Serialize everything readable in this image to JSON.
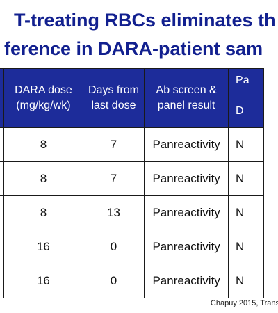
{
  "slide": {
    "title_line1": "T-treating RBCs eliminates th",
    "title_line2": "ference in DARA-patient sam",
    "citation": "Chapuy 2015, Trans"
  },
  "table": {
    "headers": [
      "",
      "DARA dose\n(mg/kg/wk)",
      "Days from\nlast dose",
      "Ab screen &\npanel result",
      "Pa\n\nD"
    ],
    "rows": [
      [
        "",
        "8",
        "7",
        "Panreactivity",
        "N"
      ],
      [
        "",
        "8",
        "7",
        "Panreactivity",
        "N"
      ],
      [
        "",
        "8",
        "13",
        "Panreactivity",
        "N"
      ],
      [
        "",
        "16",
        "0",
        "Panreactivity",
        "N"
      ],
      [
        "",
        "16",
        "0",
        "Panreactivity",
        "N"
      ]
    ]
  },
  "colors": {
    "title_text": "#12208f",
    "header_background": "#1d2c9a",
    "header_text": "#ffffff"
  }
}
